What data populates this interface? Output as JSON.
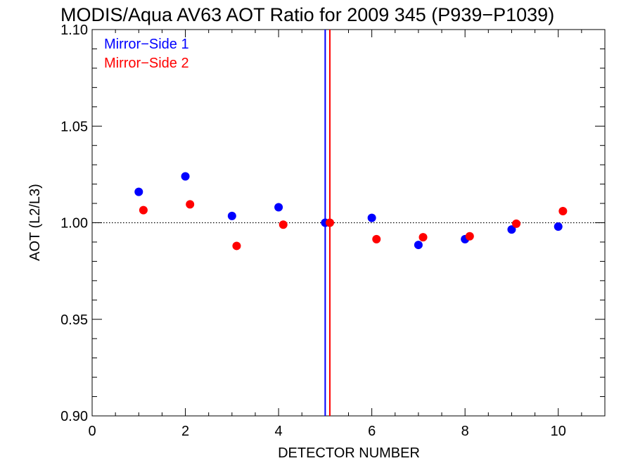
{
  "chart_data": {
    "type": "scatter",
    "title": "MODIS/Aqua AV63 AOT Ratio for 2009 345 (P939−P1039)",
    "xlabel": "DETECTOR NUMBER",
    "ylabel": "AOT (L2/L3)",
    "xlim": [
      0,
      11
    ],
    "ylim": [
      0.9,
      1.1
    ],
    "xticks": [
      0,
      2,
      4,
      6,
      8,
      10
    ],
    "xtick_labels": [
      "0",
      "2",
      "4",
      "6",
      "8",
      "10"
    ],
    "yticks": [
      0.9,
      0.95,
      1.0,
      1.05,
      1.1
    ],
    "ytick_labels": [
      "0.90",
      "0.95",
      "1.00",
      "1.05",
      "1.10"
    ],
    "grid": false,
    "legend_position": "top-left",
    "reference_line": {
      "y": 1.0,
      "style": "dotted"
    },
    "vertical_lines": [
      {
        "x": 5.0,
        "color": "#0000ff"
      },
      {
        "x": 5.1,
        "color": "#ff0000"
      }
    ],
    "series": [
      {
        "name": "Mirror−Side 1",
        "color": "#0000ff",
        "x": [
          1,
          2,
          3,
          4,
          5,
          6,
          7,
          8,
          9,
          10
        ],
        "values": [
          1.016,
          1.024,
          1.0035,
          1.008,
          1.0,
          1.0025,
          0.9885,
          0.9915,
          0.9965,
          0.998
        ]
      },
      {
        "name": "Mirror−Side 2",
        "color": "#ff0000",
        "x": [
          1.1,
          2.1,
          3.1,
          4.1,
          5.1,
          6.1,
          7.1,
          8.1,
          9.1,
          10.1
        ],
        "values": [
          1.0065,
          1.0095,
          0.988,
          0.999,
          1.0,
          0.9915,
          0.9925,
          0.993,
          0.9995,
          1.006
        ]
      }
    ]
  }
}
